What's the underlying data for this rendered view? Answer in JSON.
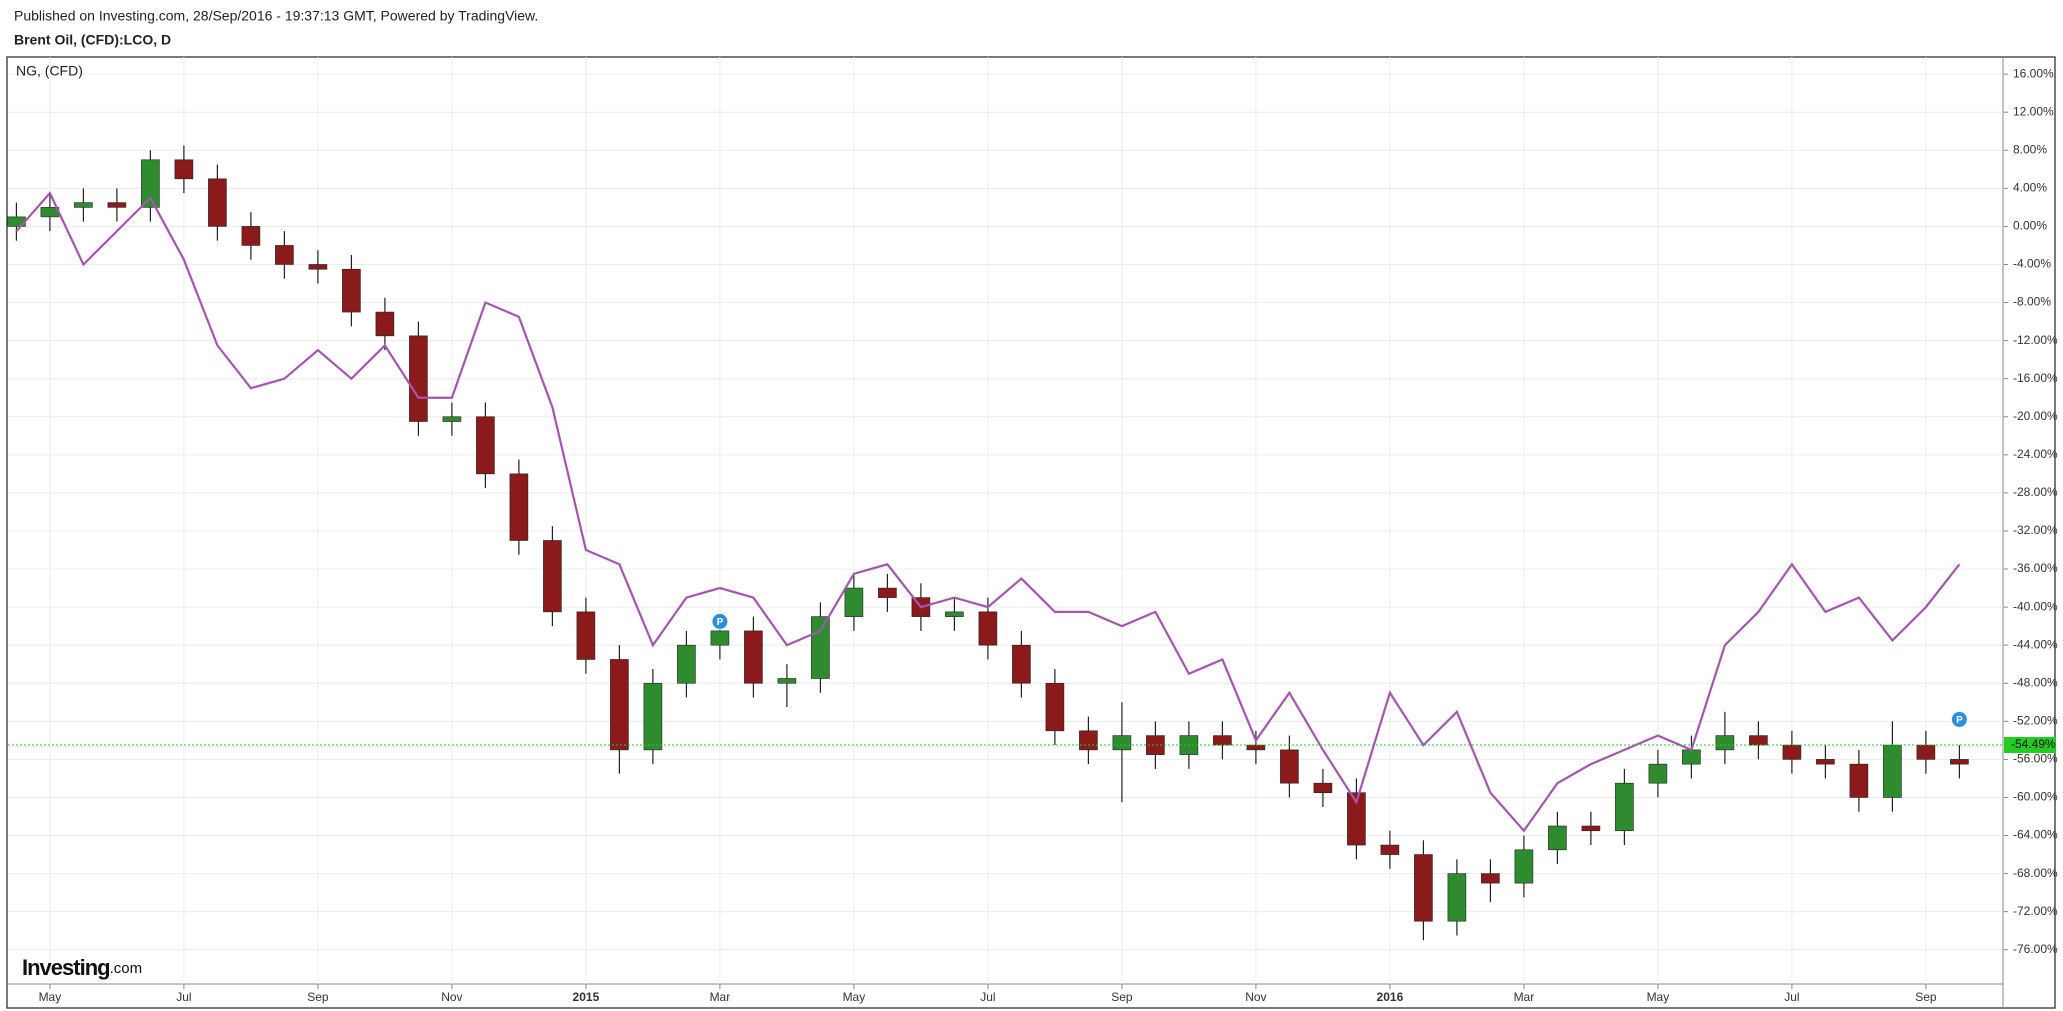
{
  "chart_data": {
    "type": "candlestick",
    "title": "Published on Investing.com, 28/Sep/2016 - 19:37:13 GMT, Powered by TradingView.",
    "logo": "Investing",
    "logo_suffix": ".com",
    "event_marker_label": "P",
    "categories": [
      null,
      "May",
      null,
      null,
      null,
      "Jul",
      null,
      null,
      null,
      "Sep",
      null,
      null,
      null,
      "Nov",
      null,
      null,
      null,
      "2015",
      null,
      null,
      null,
      "Mar",
      null,
      null,
      null,
      "May",
      null,
      null,
      null,
      "Jul",
      null,
      null,
      null,
      "Sep",
      null,
      null,
      null,
      "Nov",
      null,
      null,
      null,
      "2016",
      null,
      null,
      null,
      "Mar",
      null,
      null,
      null,
      "May",
      null,
      null,
      null,
      "Jul",
      null,
      null,
      null,
      "Sep",
      null
    ],
    "series": [
      {
        "name": "Brent Oil, (CFD):LCO, D",
        "up_color": "#2e8b2e",
        "down_color": "#8b1a1a",
        "open": [
          0,
          1,
          2,
          2.5,
          2,
          7,
          5,
          0,
          -2,
          -4,
          -4.5,
          -9,
          -11.5,
          -20.5,
          -20,
          -26,
          -33,
          -40.5,
          -45.5,
          -55,
          -48,
          -44,
          -42.5,
          -48,
          -47.5,
          -41,
          -38,
          -39,
          -41,
          -40.5,
          -44,
          -48,
          -53,
          -55,
          -53.5,
          -55.5,
          -53.5,
          -54.5,
          -55,
          -58.5,
          -59.5,
          -65,
          -66,
          -73,
          -68,
          -69,
          -65.5,
          -63,
          -63.5,
          -58.5,
          -56.5,
          -55,
          -53.5,
          -54.5,
          -56,
          -56.5,
          -60,
          -54.5,
          -56
        ],
        "high": [
          2.5,
          3.5,
          4,
          4,
          8,
          8.5,
          6.5,
          1.5,
          -0.5,
          -2.5,
          -3,
          -7.5,
          -10,
          -18.5,
          -18.5,
          -24.5,
          -31.5,
          -39,
          -44,
          -46.5,
          -42.5,
          -41,
          -41,
          -46,
          -39.5,
          -36.5,
          -36.5,
          -37.5,
          -39,
          -39,
          -42.5,
          -46.5,
          -51.5,
          -50,
          -52,
          -52,
          -52,
          -53,
          -53.5,
          -57,
          -58,
          -63.5,
          -64.5,
          -66.5,
          -66.5,
          -64,
          -61.5,
          -61.5,
          -57,
          -55,
          -53.5,
          -51,
          -52,
          -53,
          -54.5,
          -55,
          -52,
          -53,
          -54.5
        ],
        "low": [
          -1.5,
          -0.5,
          0.5,
          0.5,
          0.5,
          3.5,
          -1.5,
          -3.5,
          -5.5,
          -6,
          -10.5,
          -13,
          -22,
          -22,
          -27.5,
          -34.5,
          -42,
          -47,
          -57.5,
          -56.5,
          -49.5,
          -45.5,
          -49.5,
          -50.5,
          -49,
          -42.5,
          -40.5,
          -42.5,
          -42.5,
          -45.5,
          -49.5,
          -54.5,
          -56.5,
          -60.5,
          -57,
          -57,
          -56,
          -56.5,
          -60,
          -61,
          -66.5,
          -67.5,
          -75,
          -74.5,
          -71,
          -70.5,
          -67,
          -65,
          -65,
          -60,
          -58,
          -56.5,
          -56,
          -57.5,
          -58,
          -61.5,
          -61.5,
          -57.5,
          -58
        ],
        "close": [
          1,
          2,
          2.5,
          2,
          7,
          5,
          0,
          -2,
          -4,
          -4.5,
          -9,
          -11.5,
          -20.5,
          -20,
          -26,
          -33,
          -40.5,
          -45.5,
          -55,
          -48,
          -44,
          -42.5,
          -48,
          -47.5,
          -41,
          -38,
          -39,
          -41,
          -40.5,
          -44,
          -48,
          -53,
          -55,
          -53.5,
          -55.5,
          -53.5,
          -54.5,
          -55,
          -58.5,
          -59.5,
          -65,
          -66,
          -73,
          -68,
          -69,
          -65.5,
          -63,
          -63.5,
          -58.5,
          -56.5,
          -55,
          -53.5,
          -54.5,
          -56,
          -56.5,
          -60,
          -54.5,
          -56,
          -56.5
        ]
      },
      {
        "name": "NG,  (CFD)",
        "color": "#a555b0",
        "values": [
          -0.5,
          3.5,
          -4,
          -0.5,
          3,
          -3.5,
          -12.5,
          -17,
          -16,
          -13,
          -16,
          -12.5,
          -18,
          -18,
          -8,
          -9.5,
          -19,
          -34,
          -35.5,
          -44,
          -39,
          -38,
          -39,
          -44,
          -42.5,
          -36.5,
          -35.5,
          -40,
          -39,
          -40,
          -37,
          -40.5,
          -40.5,
          -42,
          -40.5,
          -47,
          -45.5,
          -54,
          -49,
          -55,
          -60.5,
          -49,
          -54.5,
          -51,
          -59.5,
          -63.5,
          -58.5,
          -56.5,
          -55,
          -53.5,
          -55,
          -44,
          -40.5,
          -35.5,
          -40.5,
          -39,
          -43.5,
          -40,
          -35.5
        ]
      }
    ],
    "last_value": {
      "value": -54.49,
      "label": "-54.49%",
      "color": "#22cc22"
    },
    "ylim": [
      -79.6,
      17.8
    ],
    "yticks": [
      {
        "value": 16,
        "label": "16.00%"
      },
      {
        "value": 12,
        "label": "12.00%"
      },
      {
        "value": 8,
        "label": "8.00%"
      },
      {
        "value": 4,
        "label": "4.00%"
      },
      {
        "value": 0,
        "label": "0.00%"
      },
      {
        "value": -4,
        "label": "-4.00%"
      },
      {
        "value": -8,
        "label": "-8.00%"
      },
      {
        "value": -12,
        "label": "-12.00%"
      },
      {
        "value": -16,
        "label": "-16.00%"
      },
      {
        "value": -20,
        "label": "-20.00%"
      },
      {
        "value": -24,
        "label": "-24.00%"
      },
      {
        "value": -28,
        "label": "-28.00%"
      },
      {
        "value": -32,
        "label": "-32.00%"
      },
      {
        "value": -36,
        "label": "-36.00%"
      },
      {
        "value": -40,
        "label": "-40.00%"
      },
      {
        "value": -44,
        "label": "-44.00%"
      },
      {
        "value": -48,
        "label": "-48.00%"
      },
      {
        "value": -52,
        "label": "-52.00%"
      },
      {
        "value": -56,
        "label": "-56.00%"
      },
      {
        "value": -60,
        "label": "-60.00%"
      },
      {
        "value": -64,
        "label": "-64.00%"
      },
      {
        "value": -68,
        "label": "-68.00%"
      },
      {
        "value": -72,
        "label": "-72.00%"
      },
      {
        "value": -76,
        "label": "-76.00%"
      }
    ],
    "grid": true
  }
}
